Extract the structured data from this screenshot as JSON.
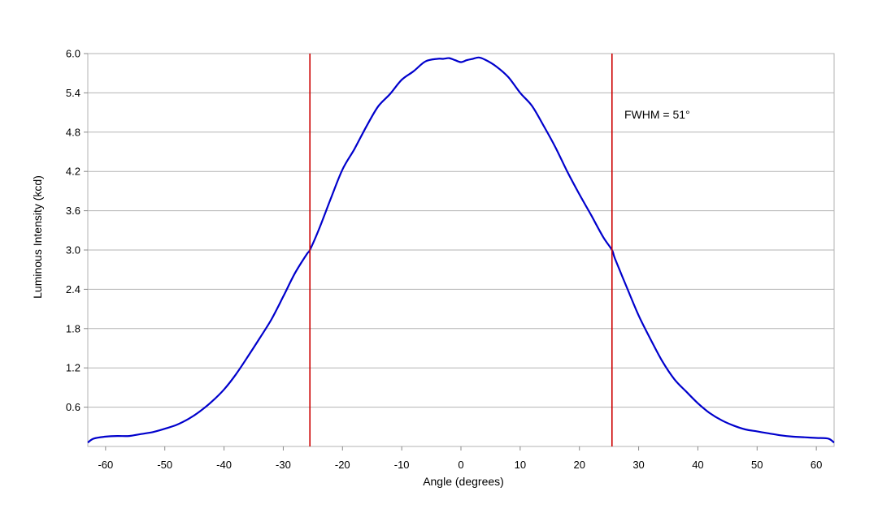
{
  "chart_data": {
    "type": "line",
    "title": "",
    "xlabel": "Angle (degrees)",
    "ylabel": "Luminous Intensity (kcd)",
    "xlim": [
      -63,
      63
    ],
    "ylim": [
      0,
      6.0
    ],
    "x_ticks": [
      -60,
      -50,
      -40,
      -30,
      -20,
      -10,
      0,
      10,
      20,
      30,
      40,
      50,
      60
    ],
    "x_tick_labels": [
      "-60",
      "-50",
      "-40",
      "-30",
      "-20",
      "-10",
      "0",
      "10",
      "20",
      "30",
      "40",
      "50",
      "60"
    ],
    "y_ticks": [
      0.6,
      1.2,
      1.8,
      2.4,
      3.0,
      3.6,
      4.2,
      4.8,
      5.4,
      6.0
    ],
    "y_tick_labels": [
      "0.6",
      "1.2",
      "1.8",
      "2.4",
      "3.0",
      "3.6",
      "4.2",
      "4.8",
      "5.4",
      "6.0"
    ],
    "grid": "horizontal",
    "series": [
      {
        "color": "#0000cc",
        "x": [
          -63,
          -62,
          -60,
          -58,
          -56,
          -54,
          -52,
          -50,
          -48,
          -46,
          -44,
          -42,
          -40,
          -38,
          -36,
          -34,
          -32,
          -30,
          -28,
          -26,
          -25.5,
          -24,
          -22,
          -20,
          -18,
          -16,
          -14,
          -12,
          -10,
          -8,
          -6,
          -4,
          -3,
          -2,
          -1,
          0,
          1,
          2,
          3,
          4,
          6,
          8,
          10,
          12,
          14,
          16,
          18,
          20,
          22,
          24,
          25.5,
          26,
          28,
          30,
          32,
          34,
          36,
          38,
          40,
          42,
          44,
          46,
          48,
          50,
          52,
          54,
          56,
          58,
          60,
          62,
          63
        ],
        "y": [
          0.06,
          0.12,
          0.15,
          0.16,
          0.16,
          0.19,
          0.22,
          0.27,
          0.33,
          0.42,
          0.54,
          0.69,
          0.87,
          1.1,
          1.37,
          1.65,
          1.94,
          2.29,
          2.65,
          2.94,
          3.0,
          3.31,
          3.78,
          4.23,
          4.54,
          4.88,
          5.19,
          5.38,
          5.6,
          5.73,
          5.88,
          5.92,
          5.92,
          5.93,
          5.9,
          5.87,
          5.9,
          5.92,
          5.94,
          5.91,
          5.8,
          5.64,
          5.4,
          5.2,
          4.89,
          4.56,
          4.19,
          3.85,
          3.53,
          3.2,
          3.0,
          2.87,
          2.43,
          2.0,
          1.64,
          1.3,
          1.03,
          0.84,
          0.66,
          0.51,
          0.4,
          0.32,
          0.26,
          0.23,
          0.2,
          0.17,
          0.15,
          0.14,
          0.13,
          0.12,
          0.06
        ]
      }
    ],
    "vlines": [
      {
        "x": -25.5,
        "color": "#cc0000"
      },
      {
        "x": 25.5,
        "color": "#cc0000"
      }
    ],
    "annotations": [
      {
        "text": "FWHM = 51°"
      }
    ],
    "colors": {
      "curve": "#0000cc",
      "marker_lines": "#cc0000",
      "grid": "#b3b3b3",
      "frame": "#b3b3b3"
    }
  }
}
